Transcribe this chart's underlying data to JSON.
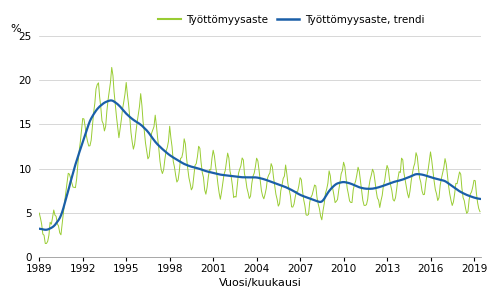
{
  "title": "",
  "ylabel": "%",
  "xlabel": "Vuosi/kuukausi",
  "legend_raw": [
    "Työttömyysaste",
    "Työttömyysaste, trendi"
  ],
  "raw_color": "#99cc33",
  "trend_color": "#1a5fa8",
  "ylim": [
    0,
    25
  ],
  "yticks": [
    0,
    5,
    10,
    15,
    20,
    25
  ],
  "xticks": [
    1989,
    1992,
    1995,
    1998,
    2001,
    2004,
    2007,
    2010,
    2013,
    2016,
    2019
  ],
  "figsize": [
    4.91,
    3.02
  ],
  "dpi": 100,
  "raw_lw": 0.7,
  "trend_lw": 1.6,
  "grid_color": "#c8c8c8",
  "bg_color": "#ffffff"
}
